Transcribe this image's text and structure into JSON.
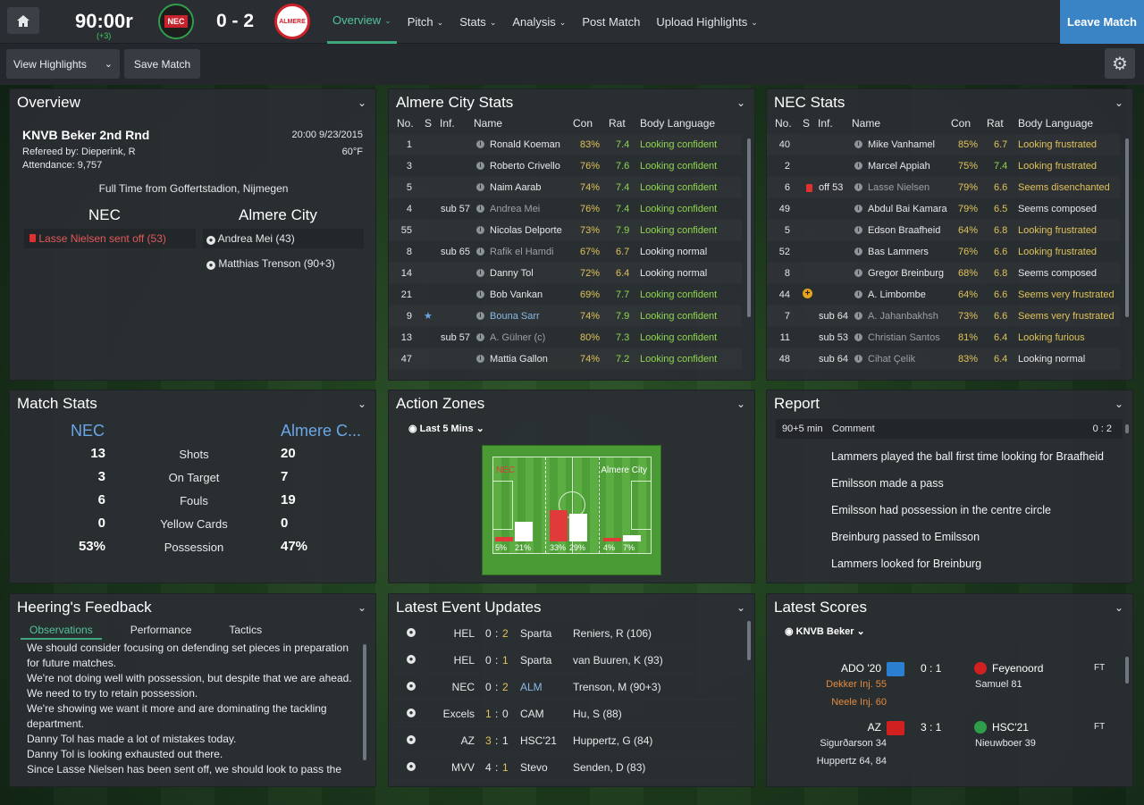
{
  "topbar": {
    "match_time": "90:00r",
    "added_time": "(+3)",
    "score": "0 - 2",
    "home_crest": "NEC",
    "away_crest": "ALMERE",
    "nav": [
      {
        "label": "Overview",
        "dropdown": true,
        "active": true
      },
      {
        "label": "Pitch",
        "dropdown": true
      },
      {
        "label": "Stats",
        "dropdown": true
      },
      {
        "label": "Analysis",
        "dropdown": true
      },
      {
        "label": "Post Match",
        "dropdown": false
      },
      {
        "label": "Upload Highlights",
        "dropdown": true
      }
    ],
    "leave_label": "Leave Match"
  },
  "toolbar": {
    "view_highlights": "View Highlights",
    "save_match": "Save Match"
  },
  "overview": {
    "title": "Overview",
    "competition": "KNVB Beker 2nd Rnd",
    "datetime": "20:00 9/23/2015",
    "referee": "Refereed by: Dieperink, R",
    "temperature": "60°F",
    "attendance": "Attendance: 9,757",
    "status": "Full Time from Goffertstadion, Nijmegen",
    "home": "NEC",
    "away": "Almere City",
    "home_events": [
      "Lasse Nielsen sent off (53)"
    ],
    "away_events": [
      "Andrea Mei (43)",
      "Matthias Trenson (90+3)"
    ]
  },
  "almere_stats": {
    "title": "Almere City Stats",
    "headers": [
      "No.",
      "S",
      "Inf.",
      "Name",
      "Con",
      "Rat",
      "Body Language"
    ],
    "rows": [
      [
        "1",
        "",
        "",
        "Ronald Koeman",
        "83%",
        "7.4",
        "Looking confident"
      ],
      [
        "3",
        "",
        "",
        "Roberto Crivello",
        "76%",
        "7.6",
        "Looking confident"
      ],
      [
        "5",
        "",
        "",
        "Naim Aarab",
        "74%",
        "7.4",
        "Looking confident"
      ],
      [
        "4",
        "",
        "sub 57",
        "Andrea Mei",
        "76%",
        "7.4",
        "Looking confident"
      ],
      [
        "55",
        "",
        "",
        "Nicolas Delporte",
        "73%",
        "7.9",
        "Looking confident"
      ],
      [
        "8",
        "",
        "sub 65",
        "Rafik el Hamdi",
        "67%",
        "6.7",
        "Looking normal"
      ],
      [
        "14",
        "",
        "",
        "Danny Tol",
        "72%",
        "6.4",
        "Looking normal"
      ],
      [
        "21",
        "",
        "",
        "Bob Vankan",
        "69%",
        "7.7",
        "Looking confident"
      ],
      [
        "9",
        "★",
        "",
        "Bouna Sarr",
        "74%",
        "7.9",
        "Looking confident"
      ],
      [
        "13",
        "",
        "sub 57",
        "A. Gülner (c)",
        "80%",
        "7.3",
        "Looking confident"
      ],
      [
        "47",
        "",
        "",
        "Mattia Gallon",
        "74%",
        "7.2",
        "Looking confident"
      ]
    ]
  },
  "nec_stats": {
    "title": "NEC Stats",
    "headers": [
      "No.",
      "S",
      "Inf.",
      "Name",
      "Con",
      "Rat",
      "Body Language"
    ],
    "rows": [
      [
        "40",
        "",
        "",
        "Mike Vanhamel",
        "85%",
        "6.7",
        "Looking frustrated"
      ],
      [
        "2",
        "",
        "",
        "Marcel Appiah",
        "75%",
        "7.4",
        "Looking frustrated"
      ],
      [
        "6",
        "red",
        "off 53",
        "Lasse Nielsen",
        "79%",
        "6.6",
        "Seems disenchanted"
      ],
      [
        "49",
        "",
        "",
        "Abdul Bai Kamara",
        "79%",
        "6.5",
        "Seems composed"
      ],
      [
        "5",
        "",
        "",
        "Edson Braafheid",
        "64%",
        "6.8",
        "Looking frustrated"
      ],
      [
        "52",
        "",
        "",
        "Bas Lammers",
        "76%",
        "6.6",
        "Looking frustrated"
      ],
      [
        "8",
        "",
        "",
        "Gregor Breinburg",
        "68%",
        "6.8",
        "Seems composed"
      ],
      [
        "44",
        "plus",
        "",
        "A. Limbombe",
        "64%",
        "6.6",
        "Seems very frustrated"
      ],
      [
        "7",
        "",
        "sub 64",
        "A. Jahanbakhsh",
        "73%",
        "6.6",
        "Seems very frustrated"
      ],
      [
        "11",
        "",
        "sub 53",
        "Christian Santos",
        "81%",
        "6.4",
        "Looking furious"
      ],
      [
        "48",
        "",
        "sub 64",
        "Cihat Çelik",
        "83%",
        "6.4",
        "Looking normal"
      ]
    ]
  },
  "match_stats": {
    "title": "Match Stats",
    "home": "NEC",
    "away": "Almere C...",
    "rows": [
      {
        "label": "Shots",
        "home": "13",
        "away": "20"
      },
      {
        "label": "On Target",
        "home": "3",
        "away": "7"
      },
      {
        "label": "Fouls",
        "home": "6",
        "away": "19"
      },
      {
        "label": "Yellow Cards",
        "home": "0",
        "away": "0"
      },
      {
        "label": "Possession",
        "home": "53%",
        "away": "47%"
      }
    ]
  },
  "action_zones": {
    "title": "Action Zones",
    "filter": "Last 5 Mins",
    "home": "NEC",
    "away": "Almere City",
    "zones": [
      {
        "home_pct": 5,
        "away_pct": 21,
        "home_label": "5%",
        "away_label": "21%"
      },
      {
        "home_pct": 33,
        "away_pct": 29,
        "home_label": "33%",
        "away_label": "29%"
      },
      {
        "home_pct": 4,
        "away_pct": 7,
        "home_label": "4%",
        "away_label": "7%"
      }
    ],
    "colors": {
      "home": "#e03a3a",
      "away": "#ffffff"
    }
  },
  "report": {
    "title": "Report",
    "time": "90+5 min",
    "comment_label": "Comment",
    "score": "0 : 2",
    "lines": [
      "Lammers played the ball first time looking for Braafheid",
      "Emilsson made a pass",
      "Emilsson had possession in the centre circle",
      "Breinburg passed to Emilsson",
      "Lammers looked for Breinburg"
    ]
  },
  "feedback": {
    "title": "Heering's Feedback",
    "tabs": [
      "Observations",
      "Performance",
      "Tactics"
    ],
    "lines": [
      "We should consider focusing on defending set pieces in preparation for future matches.",
      "We're not doing well with possession, but despite that we are ahead. We need to try to retain possession.",
      "We're showing we want it more and are dominating the tackling department.",
      "Danny Tol has made a lot of mistakes today.",
      "Danny Tol is looking exhausted out there.",
      "Since Lasse Nielsen has been sent off, we should look to pass the"
    ]
  },
  "events": {
    "title": "Latest Event Updates",
    "rows": [
      {
        "home": "HEL",
        "hs": "0",
        "as": "2",
        "away": "Sparta",
        "player": "Reniers, R (106)",
        "hl": "as"
      },
      {
        "home": "HEL",
        "hs": "0",
        "as": "1",
        "away": "Sparta",
        "player": "van Buuren, K (93)",
        "hl": "as"
      },
      {
        "home": "NEC",
        "hs": "0",
        "as": "2",
        "away": "ALM",
        "player": "Trenson, M (90+3)",
        "hl": "as",
        "away_blue": true
      },
      {
        "home": "Excels",
        "hs": "1",
        "as": "0",
        "away": "CAM",
        "player": "Hu, S (88)",
        "hl": "hs"
      },
      {
        "home": "AZ",
        "hs": "3",
        "as": "1",
        "away": "HSC'21",
        "player": "Huppertz, G (84)",
        "hl": "hs"
      },
      {
        "home": "MVV",
        "hs": "4",
        "as": "1",
        "away": "Stevo",
        "player": "Senden, D (83)",
        "hl": "as"
      }
    ]
  },
  "scores": {
    "title": "Latest Scores",
    "filter": "KNVB Beker",
    "games": [
      {
        "home": "ADO '20",
        "score": "0 : 1",
        "away": "Feyenoord",
        "status": "FT",
        "home_notes": [
          "Dekker Inj. 55",
          "Neele Inj. 60"
        ],
        "away_notes": [
          "Samuel 81"
        ]
      },
      {
        "home": "AZ",
        "score": "3 : 1",
        "away": "HSC'21",
        "status": "FT",
        "home_notes": [
          "Sigurðarson 34",
          "Huppertz 64, 84"
        ],
        "away_notes": [
          "Nieuwboer 39"
        ]
      }
    ]
  }
}
